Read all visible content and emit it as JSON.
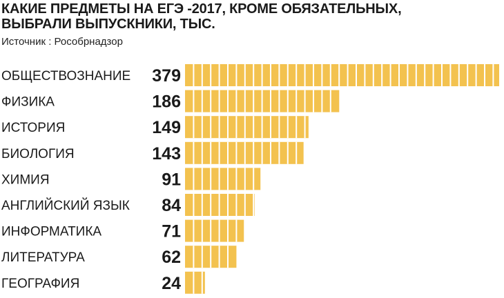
{
  "header": {
    "title_line1": "КАКИЕ ПРЕДМЕТЫ НА ЕГЭ -2017, КРОМЕ ОБЯЗАТЕЛЬНЫХ,",
    "title_line2": "ВЫБРАЛИ ВЫПУСКНИКИ, ТЫС.",
    "source": "Источник : Рособрнадзор"
  },
  "chart_data": {
    "type": "bar",
    "orientation": "horizontal",
    "title": "КАКИЕ ПРЕДМЕТЫ НА ЕГЭ -2017, КРОМЕ ОБЯЗАТЕЛЬНЫХ, ВЫБРАЛИ ВЫПУСКНИКИ, ТЫС.",
    "categories": [
      "ОБЩЕСТВОЗНАНИЕ",
      "ФИЗИКА",
      "ИСТОРИЯ",
      "БИОЛОГИЯ",
      "ХИМИЯ",
      "АНГЛИЙСКИЙ ЯЗЫК",
      "ИНФОРМАТИКА",
      "ЛИТЕРАТУРА",
      "ГЕОГРАФИЯ"
    ],
    "values": [
      379,
      186,
      149,
      143,
      91,
      84,
      71,
      62,
      24
    ],
    "data_labels": [
      "379",
      "186",
      "149",
      "143",
      "91",
      "84",
      "71",
      "62",
      "24"
    ],
    "xlim": [
      0,
      379
    ],
    "grid": false,
    "legend": "none",
    "bar_color": "#f3c24f",
    "segment_divider_color": "#ffffff"
  }
}
